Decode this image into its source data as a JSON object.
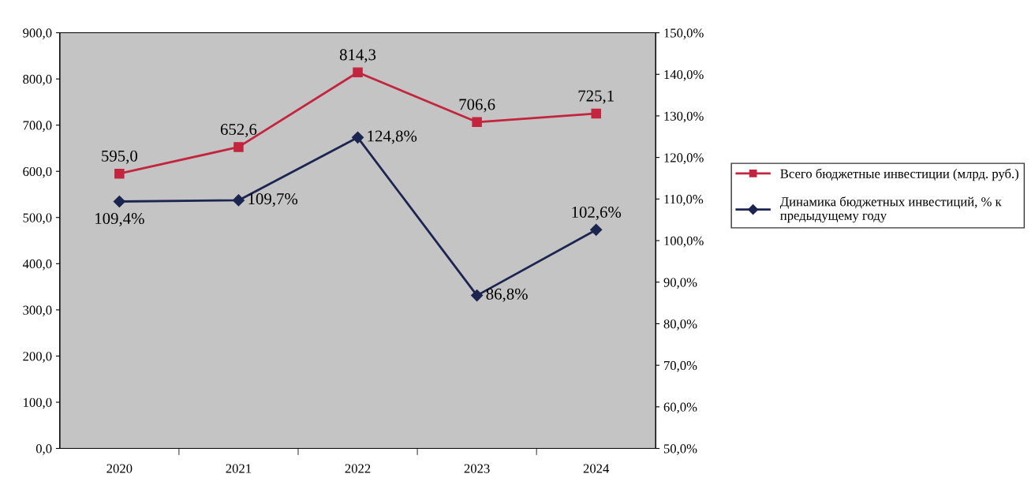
{
  "chart_data": {
    "type": "line",
    "categories": [
      "2020",
      "2021",
      "2022",
      "2023",
      "2024"
    ],
    "series": [
      {
        "name": "Всего бюджетные инвестиции (млрд. руб.)",
        "color": "#c3253e",
        "marker": "square",
        "values": [
          595.0,
          652.6,
          814.3,
          706.6,
          725.1
        ],
        "value_labels": [
          "595,0",
          "652,6",
          "814,3",
          "706,6",
          "725,1"
        ]
      },
      {
        "name": "Динамика бюджетных инвестиций, % к предыдущему году",
        "color": "#1c2550",
        "marker": "diamond",
        "axis": "y2",
        "values": [
          109.4,
          109.7,
          124.8,
          86.8,
          102.6
        ],
        "value_labels": [
          "109,4%",
          "109,7%",
          "124,8%",
          "86,8%",
          "102,6%"
        ]
      }
    ],
    "ylim": [
      0,
      900
    ],
    "yticks": [
      {
        "value": 0,
        "label": "0,0"
      },
      {
        "value": 100,
        "label": "100,0"
      },
      {
        "value": 200,
        "label": "200,0"
      },
      {
        "value": 300,
        "label": "300,0"
      },
      {
        "value": 400,
        "label": "400,0"
      },
      {
        "value": 500,
        "label": "500,0"
      },
      {
        "value": 600,
        "label": "600,0"
      },
      {
        "value": 700,
        "label": "700,0"
      },
      {
        "value": 800,
        "label": "800,0"
      },
      {
        "value": 900,
        "label": "900,0"
      }
    ],
    "y2lim": [
      50,
      150
    ],
    "y2ticks": [
      {
        "value": 50,
        "label": "50,0%"
      },
      {
        "value": 60,
        "label": "60,0%"
      },
      {
        "value": 70,
        "label": "70,0%"
      },
      {
        "value": 80,
        "label": "80,0%"
      },
      {
        "value": 90,
        "label": "90,0%"
      },
      {
        "value": 100,
        "label": "100,0%"
      },
      {
        "value": 110,
        "label": "110,0%"
      },
      {
        "value": 120,
        "label": "120,0%"
      },
      {
        "value": 130,
        "label": "130,0%"
      },
      {
        "value": 140,
        "label": "140,0%"
      },
      {
        "value": 150,
        "label": "150,0%"
      }
    ],
    "grid": false,
    "legend": "right",
    "line_style": "solid"
  }
}
